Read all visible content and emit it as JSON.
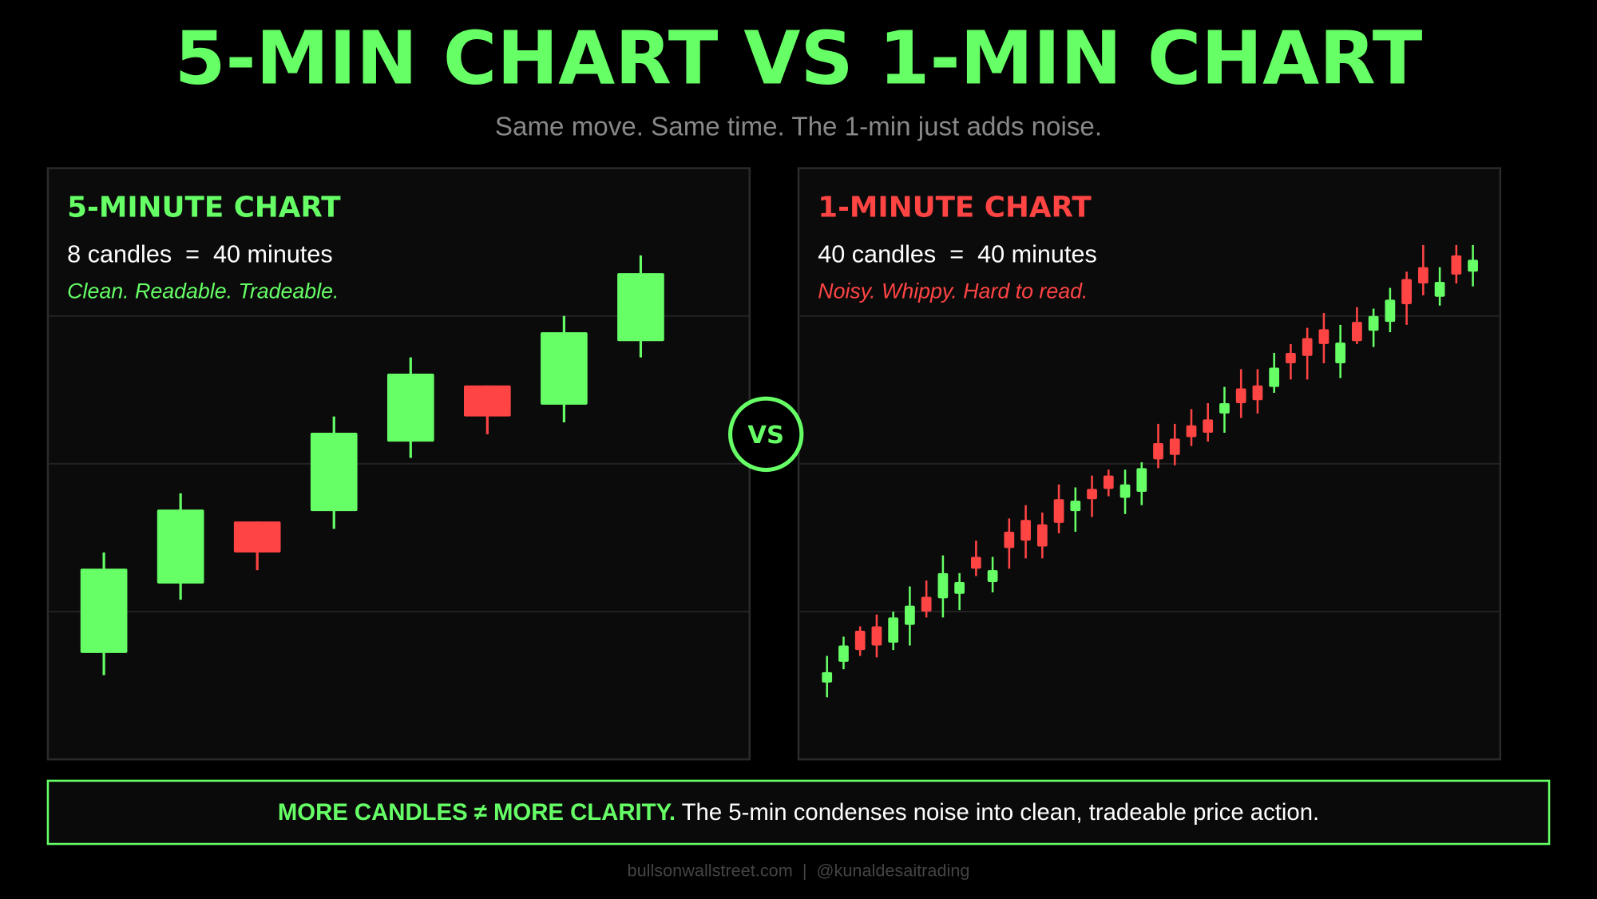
{
  "title": "5-MIN CHART VS 1-MIN CHART",
  "subtitle": "Same move. Same time. The 1-min just adds noise.",
  "vs_label": "VS",
  "chart_data": [
    {
      "type": "candlestick",
      "title": "5-MINUTE CHART",
      "subtitle": "8 candles  =  40 minutes",
      "caption": "Clean. Readable. Tradeable.",
      "open": [
        7.2,
        11.9,
        16.1,
        16.8,
        21.5,
        25.3,
        24.0,
        28.3
      ],
      "high": [
        14.0,
        18.0,
        16.1,
        23.2,
        27.2,
        25.3,
        30.0,
        34.1
      ],
      "low": [
        5.7,
        10.8,
        12.8,
        15.6,
        20.4,
        22.0,
        22.8,
        27.2
      ],
      "close": [
        12.9,
        16.9,
        14.0,
        22.1,
        26.1,
        23.2,
        28.9,
        32.9
      ],
      "up_color": "#66ff66",
      "down_color": "#ff4444",
      "ylim": [
        0,
        40
      ],
      "yticks": [
        10,
        20,
        30
      ],
      "grid": true
    },
    {
      "type": "candlestick",
      "title": "1-MINUTE CHART",
      "subtitle": "40 candles  =  40 minutes",
      "caption": "Noisy. Whippy. Hard to read.",
      "open": [
        5.2,
        6.6,
        8.7,
        9.0,
        7.9,
        9.1,
        11.0,
        10.9,
        11.2,
        13.7,
        12.0,
        15.4,
        16.2,
        15.9,
        17.6,
        16.8,
        18.3,
        19.2,
        17.7,
        18.1,
        21.4,
        21.7,
        22.6,
        23.0,
        23.4,
        25.1,
        25.3,
        25.2,
        27.5,
        28.5,
        29.1,
        26.8,
        29.6,
        29.0,
        29.6,
        32.5,
        33.3,
        31.3,
        34.1,
        33.0
      ],
      "high": [
        7.0,
        8.3,
        9.0,
        9.8,
        10.0,
        11.7,
        12.1,
        13.8,
        12.6,
        14.8,
        13.7,
        16.3,
        17.2,
        16.7,
        18.6,
        18.4,
        19.2,
        19.6,
        19.6,
        20.1,
        22.7,
        22.7,
        23.7,
        24.1,
        25.2,
        26.4,
        26.4,
        27.5,
        28.1,
        29.2,
        30.2,
        29.4,
        30.6,
        30.5,
        31.9,
        33.0,
        34.8,
        33.3,
        34.8,
        34.8
      ],
      "low": [
        4.2,
        6.1,
        7.0,
        6.9,
        7.4,
        7.7,
        9.6,
        9.6,
        10.1,
        12.4,
        11.3,
        12.9,
        13.6,
        13.6,
        15.3,
        15.4,
        16.4,
        17.8,
        16.6,
        17.2,
        19.7,
        19.9,
        21.2,
        21.5,
        22.1,
        23.1,
        23.4,
        24.8,
        25.7,
        25.7,
        26.8,
        25.8,
        28.1,
        27.9,
        28.9,
        29.4,
        31.4,
        30.7,
        32.2,
        32.0
      ],
      "close": [
        5.9,
        7.7,
        7.4,
        7.7,
        9.6,
        10.4,
        10.0,
        12.6,
        12.0,
        12.9,
        12.8,
        14.3,
        14.8,
        14.4,
        16.0,
        17.5,
        17.6,
        18.3,
        18.6,
        19.7,
        20.3,
        20.6,
        21.8,
        22.1,
        24.1,
        24.1,
        24.3,
        26.5,
        26.8,
        27.3,
        28.1,
        28.2,
        28.3,
        30.0,
        31.1,
        30.8,
        32.2,
        32.3,
        32.8,
        33.8
      ],
      "up_color": "#66ff66",
      "down_color": "#ff4444",
      "ylim": [
        0,
        40
      ],
      "yticks": [
        10,
        20,
        30
      ],
      "grid": true
    }
  ],
  "banner": {
    "emphasis": "MORE CANDLES ≠ MORE CLARITY.",
    "text": " The 5-min condenses noise into clean, tradeable price action."
  },
  "footer": "bullsonwallstreet.com  |  @kunaldesaitrading"
}
